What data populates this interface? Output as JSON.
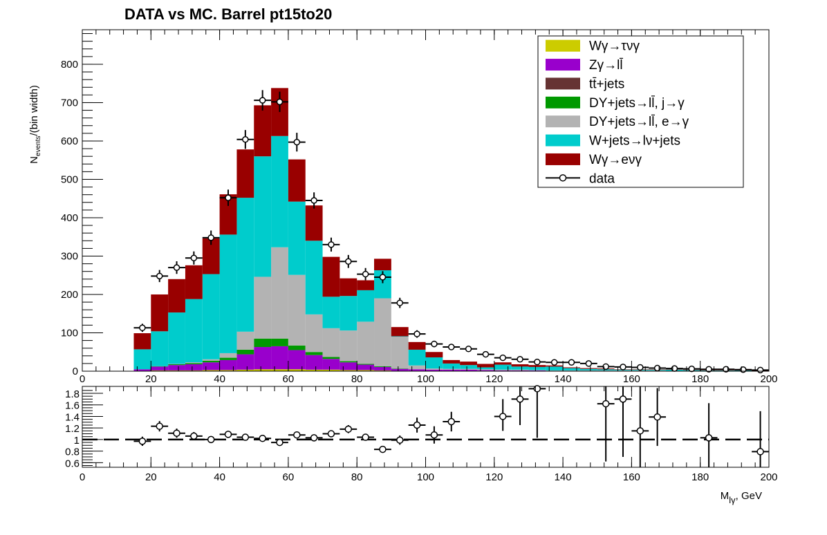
{
  "chart_data": [
    {
      "type": "stacked-bar",
      "panel": "main",
      "title": "DATA vs MC. Barrel  pt15to20",
      "ylabel": "N_events /(bin width)",
      "ylabel_main": "N",
      "ylabel_sub": "events",
      "ylabel_rest": "/(bin width)",
      "xlim": [
        0,
        200
      ],
      "ylim": [
        0,
        890
      ],
      "xticks": [
        0,
        20,
        40,
        60,
        80,
        100,
        120,
        140,
        160,
        180,
        200
      ],
      "xtick_labels": [
        "0",
        "20",
        "40",
        "60",
        "80",
        "100",
        "120",
        "140",
        "160",
        "180",
        "200"
      ],
      "yticks": [
        0,
        100,
        200,
        300,
        400,
        500,
        600,
        700,
        800
      ],
      "ytick_labels": [
        "0",
        "100",
        "200",
        "300",
        "400",
        "500",
        "600",
        "700",
        "800"
      ],
      "bin_edges": [
        15,
        20,
        25,
        30,
        35,
        40,
        45,
        50,
        55,
        60,
        65,
        70,
        75,
        80,
        85,
        90,
        95,
        100,
        105,
        110,
        115,
        120,
        125,
        130,
        135,
        140,
        145,
        150,
        155,
        160,
        165,
        170,
        175,
        180,
        185,
        190,
        195,
        200
      ],
      "stack_order": [
        "Wγ→τνγ",
        "Zγ→ll̄",
        "tt̄+jets",
        "DY+jets→ll̄, j→γ",
        "DY+jets→ll̄, e→γ",
        "W+jets→lν+jets",
        "Wγ→eνγ"
      ],
      "series": [
        {
          "name": "Wγ→τνγ",
          "color": "#cccc00",
          "values": [
            1,
            2,
            2,
            2,
            3,
            3,
            4,
            5,
            5,
            5,
            4,
            4,
            3,
            3,
            2,
            1,
            1,
            1,
            1,
            1,
            1,
            0,
            0,
            0,
            0,
            0,
            0,
            0,
            0,
            0,
            0,
            0,
            0,
            0,
            0,
            0,
            0
          ]
        },
        {
          "name": "Zγ→ll̄",
          "color": "#9900cc",
          "values": [
            4,
            10,
            14,
            16,
            20,
            26,
            40,
            58,
            60,
            50,
            38,
            28,
            20,
            14,
            9,
            5,
            4,
            3,
            3,
            3,
            2,
            2,
            2,
            2,
            1,
            1,
            1,
            1,
            1,
            1,
            1,
            1,
            1,
            0,
            0,
            0,
            0
          ]
        },
        {
          "name": "tt̄+jets",
          "color": "#663333",
          "values": [
            0,
            0,
            0,
            0,
            0,
            0,
            0,
            0,
            0,
            0,
            0,
            0,
            0,
            0,
            0,
            0,
            0,
            0,
            0,
            0,
            0,
            0,
            0,
            0,
            0,
            0,
            0,
            0,
            0,
            0,
            0,
            0,
            0,
            0,
            0,
            0,
            0
          ]
        },
        {
          "name": "DY+jets→ll̄, j→γ",
          "color": "#009900",
          "values": [
            0,
            1,
            2,
            3,
            4,
            6,
            12,
            22,
            20,
            12,
            8,
            5,
            3,
            2,
            2,
            1,
            0,
            0,
            0,
            0,
            0,
            0,
            0,
            0,
            0,
            0,
            0,
            0,
            0,
            0,
            0,
            0,
            0,
            0,
            0,
            0,
            0
          ]
        },
        {
          "name": "DY+jets→ll̄, e→γ",
          "color": "#b3b3b3",
          "values": [
            0,
            0,
            1,
            2,
            4,
            12,
            47,
            161,
            238,
            184,
            98,
            75,
            80,
            110,
            177,
            83,
            10,
            3,
            2,
            2,
            2,
            2,
            2,
            1,
            1,
            1,
            1,
            1,
            1,
            1,
            1,
            0,
            0,
            0,
            0,
            0,
            0
          ]
        },
        {
          "name": "W+jets→lν+jets",
          "color": "#00cccc",
          "values": [
            52,
            91,
            134,
            165,
            222,
            309,
            349,
            314,
            290,
            191,
            192,
            82,
            90,
            82,
            73,
            1,
            41,
            29,
            14,
            10,
            5,
            13,
            8,
            8,
            10,
            6,
            4,
            3,
            2,
            2,
            2,
            3,
            2,
            2,
            2,
            2,
            1
          ]
        },
        {
          "name": "Wγ→eνγ",
          "color": "#990000",
          "values": [
            42,
            96,
            87,
            88,
            93,
            105,
            126,
            133,
            125,
            110,
            92,
            104,
            46,
            26,
            30,
            24,
            20,
            14,
            9,
            9,
            9,
            6,
            6,
            5,
            3,
            2,
            2,
            2,
            1,
            1,
            1,
            1,
            1,
            1,
            1,
            1,
            1
          ]
        }
      ],
      "data_series": {
        "name": "data",
        "x": [
          17.5,
          22.5,
          27.5,
          32.5,
          37.5,
          42.5,
          47.5,
          52.5,
          57.5,
          62.5,
          67.5,
          72.5,
          77.5,
          82.5,
          87.5,
          92.5,
          97.5,
          102.5,
          107.5,
          112.5,
          117.5,
          122.5,
          127.5,
          132.5,
          137.5,
          142.5,
          147.5,
          152.5,
          157.5,
          162.5,
          167.5,
          172.5,
          177.5,
          182.5,
          187.5,
          192.5,
          197.5
        ],
        "y": [
          113,
          248,
          270,
          295,
          348,
          452,
          604,
          706,
          702,
          597,
          445,
          330,
          286,
          253,
          245,
          178,
          97,
          71,
          63,
          58,
          44,
          35,
          31,
          24,
          23,
          23,
          20,
          12,
          11,
          10,
          8,
          7,
          6,
          5,
          5,
          4,
          3
        ]
      },
      "legend": {
        "position": "top-right",
        "entries": [
          {
            "label": "Wγ→τνγ",
            "kind": "fill",
            "color": "#cccc00"
          },
          {
            "label": "Zγ→ll̄",
            "kind": "fill",
            "color": "#9900cc"
          },
          {
            "label": "tt̄+jets",
            "kind": "fill",
            "color": "#663333"
          },
          {
            "label": "DY+jets→ll̄, j→γ",
            "kind": "fill",
            "color": "#009900"
          },
          {
            "label": "DY+jets→ll̄, e→γ",
            "kind": "fill",
            "color": "#b3b3b3"
          },
          {
            "label": "W+jets→lν+jets",
            "kind": "fill",
            "color": "#00cccc"
          },
          {
            "label": "Wγ→eνγ",
            "kind": "fill",
            "color": "#990000"
          },
          {
            "label": "data",
            "kind": "marker",
            "color": "#000000"
          }
        ]
      }
    },
    {
      "type": "scatter",
      "panel": "ratio",
      "xlabel": "M_lγ, GeV",
      "xlabel_main": "M",
      "xlabel_sub": "lγ",
      "xlabel_rest": ", GeV",
      "xlim": [
        0,
        200
      ],
      "ylim": [
        0.52,
        1.92
      ],
      "xticks": [
        0,
        20,
        40,
        60,
        80,
        100,
        120,
        140,
        160,
        180,
        200
      ],
      "xtick_labels": [
        "0",
        "20",
        "40",
        "60",
        "80",
        "100",
        "120",
        "140",
        "160",
        "180",
        "200"
      ],
      "yticks": [
        0.6,
        0.8,
        1.0,
        1.2,
        1.4,
        1.6,
        1.8
      ],
      "ytick_labels": [
        "0.6",
        "0.8",
        "1",
        "1.2",
        "1.4",
        "1.6",
        "1.8"
      ],
      "reference_line": 1.0,
      "points": {
        "x": [
          17.5,
          22.5,
          27.5,
          32.5,
          37.5,
          42.5,
          47.5,
          52.5,
          57.5,
          62.5,
          67.5,
          72.5,
          77.5,
          82.5,
          87.5,
          92.5,
          97.5,
          102.5,
          107.5,
          122.5,
          127.5,
          132.5,
          152.5,
          157.5,
          162.5,
          167.5,
          182.5,
          197.5
        ],
        "y": [
          0.97,
          1.23,
          1.11,
          1.06,
          1.0,
          1.09,
          1.04,
          1.02,
          0.95,
          1.08,
          1.03,
          1.1,
          1.18,
          1.04,
          0.83,
          0.99,
          1.25,
          1.08,
          1.31,
          1.4,
          1.7,
          1.88,
          1.62,
          1.7,
          1.15,
          1.39,
          1.03,
          0.79
        ],
        "yerr_low": [
          0.08,
          0.09,
          0.08,
          0.07,
          0.06,
          0.06,
          0.05,
          0.04,
          0.04,
          0.04,
          0.05,
          0.06,
          0.07,
          0.06,
          0.04,
          0.08,
          0.13,
          0.15,
          0.17,
          0.25,
          0.45,
          0.85,
          1.0,
          1.0,
          0.8,
          0.5,
          0.6,
          0.5
        ],
        "yerr_high": [
          0.08,
          0.09,
          0.08,
          0.07,
          0.06,
          0.06,
          0.05,
          0.04,
          0.04,
          0.04,
          0.05,
          0.06,
          0.07,
          0.06,
          0.04,
          0.08,
          0.13,
          0.15,
          0.17,
          0.3,
          0.4,
          0.5,
          0.6,
          0.6,
          0.8,
          0.5,
          0.6,
          0.7
        ]
      }
    }
  ]
}
